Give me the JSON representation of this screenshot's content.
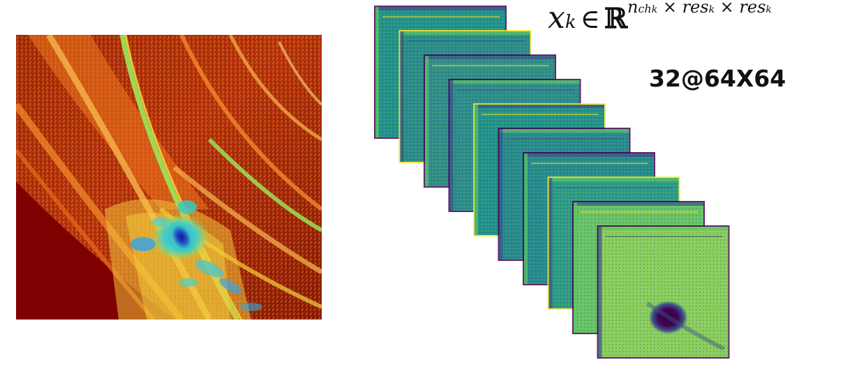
{
  "formula": {
    "base": "x",
    "subscript": "k",
    "relation": "∈",
    "space": "ℝ",
    "superscript": "n_ch_k × res_k × res_k"
  },
  "feature_map_shape": "32@64X64",
  "stack": {
    "visible_maps": 10,
    "colormap": "viridis",
    "colors": {
      "dark": "#440154",
      "blue": "#3b528b",
      "teal": "#21908c",
      "green": "#5dc863",
      "yellow": "#fde725"
    }
  },
  "input_image": {
    "colormap": "jet",
    "colors": {
      "dark_red": "#7f0000",
      "red": "#c43a0a",
      "orange": "#f07a1e",
      "yellow": "#f3d13c",
      "green": "#9be05a",
      "cyan": "#3cc7c0",
      "blue": "#1e4fd0",
      "navy": "#16197a"
    }
  }
}
